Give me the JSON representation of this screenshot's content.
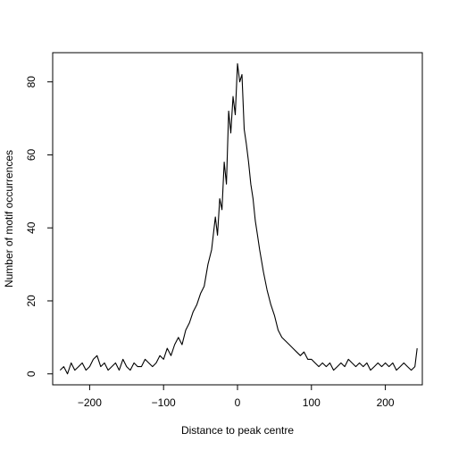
{
  "chart_data": {
    "type": "line",
    "title": "",
    "xlabel": "Distance to peak centre",
    "ylabel": "Number of motif occurrences",
    "xlim": [
      -250,
      250
    ],
    "ylim": [
      -3,
      88
    ],
    "xticks": [
      -200,
      -100,
      0,
      100,
      200
    ],
    "yticks": [
      0,
      20,
      40,
      60,
      80
    ],
    "xtick_labels": [
      "−200",
      "−100",
      "0",
      "100",
      "200"
    ],
    "ytick_labels": [
      "0",
      "20",
      "40",
      "60",
      "80"
    ],
    "grid": false,
    "line_color": "#000000",
    "series": [
      {
        "x": [
          -240,
          -235,
          -230,
          -225,
          -220,
          -215,
          -210,
          -205,
          -200,
          -195,
          -190,
          -185,
          -180,
          -175,
          -170,
          -165,
          -160,
          -155,
          -150,
          -145,
          -140,
          -135,
          -130,
          -125,
          -120,
          -115,
          -110,
          -105,
          -100,
          -95,
          -90,
          -85,
          -80,
          -75,
          -70,
          -65,
          -60,
          -55,
          -50,
          -45,
          -40,
          -35,
          -30,
          -27,
          -24,
          -21,
          -18,
          -15,
          -12,
          -9,
          -6,
          -3,
          0,
          3,
          6,
          9,
          12,
          15,
          18,
          21,
          24,
          27,
          30,
          35,
          40,
          45,
          50,
          55,
          60,
          65,
          70,
          75,
          80,
          85,
          90,
          95,
          100,
          105,
          110,
          115,
          120,
          125,
          130,
          135,
          140,
          145,
          150,
          155,
          160,
          165,
          170,
          175,
          180,
          185,
          190,
          195,
          200,
          205,
          210,
          215,
          220,
          225,
          230,
          235,
          240,
          243
        ],
        "values": [
          1,
          2,
          0,
          3,
          1,
          2,
          3,
          1,
          2,
          4,
          5,
          2,
          3,
          1,
          2,
          3,
          1,
          4,
          2,
          1,
          3,
          2,
          2,
          4,
          3,
          2,
          3,
          5,
          4,
          7,
          5,
          8,
          10,
          8,
          12,
          14,
          17,
          19,
          22,
          24,
          30,
          34,
          43,
          38,
          48,
          45,
          58,
          52,
          72,
          66,
          76,
          71,
          85,
          80,
          82,
          67,
          63,
          58,
          52,
          48,
          42,
          38,
          34,
          28,
          23,
          19,
          16,
          12,
          10,
          9,
          8,
          7,
          6,
          5,
          6,
          4,
          4,
          3,
          2,
          3,
          2,
          3,
          1,
          2,
          3,
          2,
          4,
          3,
          2,
          3,
          2,
          3,
          1,
          2,
          3,
          2,
          3,
          2,
          3,
          1,
          2,
          3,
          2,
          1,
          2,
          7
        ]
      }
    ]
  }
}
